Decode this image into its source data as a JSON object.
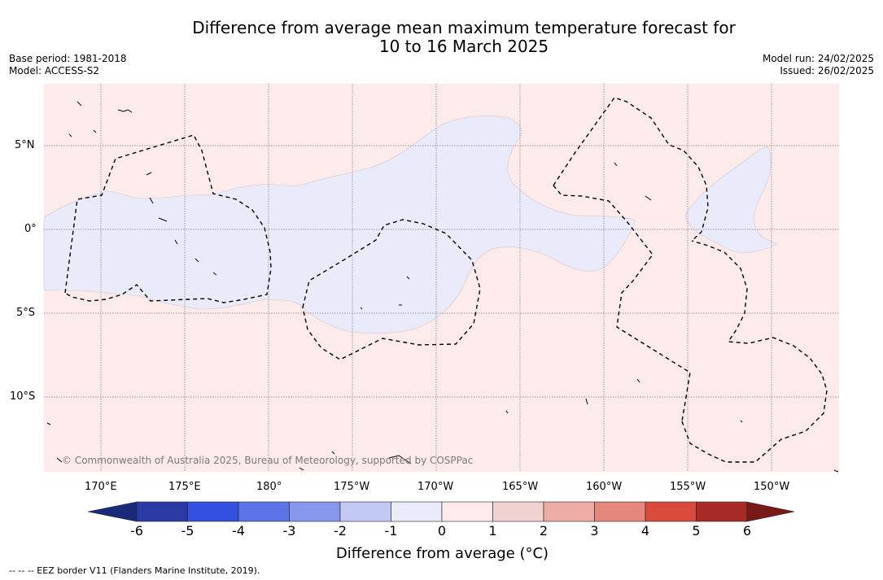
{
  "title": {
    "line1": "Difference from average mean maximum temperature forecast for",
    "line2": "10 to 16 March 2025"
  },
  "meta_left": {
    "base_period": "Base period: 1981-2018",
    "model": "Model: ACCESS-S2"
  },
  "meta_right": {
    "model_run": "Model run: 24/02/2025",
    "issued": "Issued: 26/02/2025"
  },
  "map": {
    "lat_labels": [
      "5°N",
      "0°",
      "5°S",
      "10°S"
    ],
    "lon_labels": [
      "170°E",
      "175°E",
      "180°",
      "175°W",
      "170°W",
      "165°W",
      "160°W",
      "155°W",
      "150°W"
    ],
    "copyright": "© Commonwealth of Australia 2025, Bureau of Meteorology, supported by COSPPac",
    "background_anomaly_class": "0 to 1",
    "equatorial_band_anomaly_class": "-1 to 0"
  },
  "colorbar": {
    "label": "Difference from average (°C)",
    "ticks": [
      "-6",
      "-5",
      "-4",
      "-3",
      "-2",
      "-1",
      "0",
      "1",
      "2",
      "3",
      "4",
      "5",
      "6"
    ],
    "colors": [
      "#2a3ba8",
      "#3450e0",
      "#5b73e6",
      "#8798ec",
      "#c2c9f2",
      "#e9ebfb",
      "#fcebea",
      "#f0d2d0",
      "#ecaba5",
      "#e6877e",
      "#d94a3d",
      "#a82a24"
    ],
    "under_color": "#1a2a7a",
    "over_color": "#7a1a18"
  },
  "footnote": "-- -- -- EEZ border V11 (Flanders Marine Institute, 2019)."
}
